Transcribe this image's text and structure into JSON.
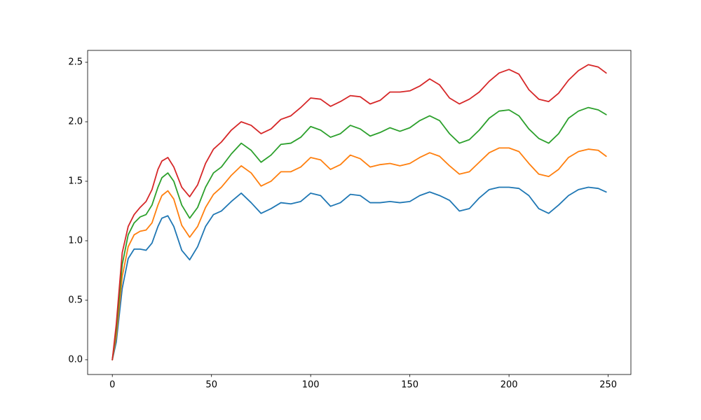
{
  "chart_data": {
    "type": "line",
    "x": [
      0,
      2,
      5,
      8,
      11,
      14,
      17,
      20,
      23,
      25,
      28,
      31,
      35,
      39,
      43,
      47,
      51,
      55,
      60,
      65,
      70,
      75,
      80,
      85,
      90,
      95,
      100,
      105,
      110,
      115,
      120,
      125,
      130,
      135,
      140,
      145,
      150,
      155,
      160,
      165,
      170,
      175,
      180,
      185,
      190,
      195,
      200,
      205,
      210,
      215,
      220,
      225,
      230,
      235,
      240,
      245,
      249
    ],
    "series": [
      {
        "color": "#1f77b4",
        "values": [
          0,
          0.15,
          0.6,
          0.85,
          0.93,
          0.93,
          0.92,
          0.98,
          1.12,
          1.19,
          1.21,
          1.12,
          0.92,
          0.84,
          0.95,
          1.12,
          1.22,
          1.25,
          1.33,
          1.4,
          1.32,
          1.23,
          1.27,
          1.32,
          1.31,
          1.33,
          1.4,
          1.38,
          1.29,
          1.32,
          1.39,
          1.38,
          1.32,
          1.32,
          1.33,
          1.32,
          1.33,
          1.38,
          1.41,
          1.38,
          1.34,
          1.25,
          1.27,
          1.36,
          1.43,
          1.45,
          1.45,
          1.44,
          1.38,
          1.27,
          1.23,
          1.3,
          1.38,
          1.43,
          1.45,
          1.44,
          1.41
        ]
      },
      {
        "color": "#ff7f0e",
        "values": [
          0,
          0.2,
          0.7,
          0.95,
          1.05,
          1.08,
          1.09,
          1.15,
          1.3,
          1.38,
          1.42,
          1.35,
          1.13,
          1.03,
          1.12,
          1.28,
          1.39,
          1.45,
          1.55,
          1.63,
          1.57,
          1.46,
          1.5,
          1.58,
          1.58,
          1.62,
          1.7,
          1.68,
          1.6,
          1.64,
          1.72,
          1.69,
          1.62,
          1.64,
          1.65,
          1.63,
          1.65,
          1.7,
          1.74,
          1.71,
          1.63,
          1.56,
          1.58,
          1.66,
          1.74,
          1.78,
          1.78,
          1.75,
          1.65,
          1.56,
          1.54,
          1.6,
          1.7,
          1.75,
          1.77,
          1.76,
          1.71
        ]
      },
      {
        "color": "#2ca02c",
        "values": [
          0,
          0.25,
          0.8,
          1.05,
          1.15,
          1.2,
          1.22,
          1.3,
          1.45,
          1.53,
          1.57,
          1.5,
          1.3,
          1.19,
          1.28,
          1.45,
          1.57,
          1.62,
          1.73,
          1.82,
          1.76,
          1.66,
          1.72,
          1.81,
          1.82,
          1.87,
          1.96,
          1.93,
          1.87,
          1.9,
          1.97,
          1.94,
          1.88,
          1.91,
          1.95,
          1.92,
          1.95,
          2.01,
          2.05,
          2.01,
          1.9,
          1.82,
          1.85,
          1.93,
          2.03,
          2.09,
          2.1,
          2.05,
          1.94,
          1.86,
          1.82,
          1.9,
          2.03,
          2.09,
          2.12,
          2.1,
          2.06
        ]
      },
      {
        "color": "#d62728",
        "values": [
          0,
          0.3,
          0.9,
          1.12,
          1.22,
          1.28,
          1.33,
          1.43,
          1.6,
          1.67,
          1.7,
          1.62,
          1.45,
          1.37,
          1.47,
          1.65,
          1.77,
          1.83,
          1.93,
          2.0,
          1.97,
          1.9,
          1.94,
          2.02,
          2.05,
          2.12,
          2.2,
          2.19,
          2.13,
          2.17,
          2.22,
          2.21,
          2.15,
          2.18,
          2.25,
          2.25,
          2.26,
          2.3,
          2.36,
          2.31,
          2.2,
          2.15,
          2.19,
          2.25,
          2.34,
          2.41,
          2.44,
          2.4,
          2.27,
          2.19,
          2.17,
          2.24,
          2.35,
          2.43,
          2.48,
          2.46,
          2.41
        ]
      }
    ],
    "xlim": [
      -12.45,
      261.45
    ],
    "xticks": [
      0,
      50,
      100,
      150,
      200,
      250
    ],
    "ylim": [
      -0.124,
      2.6
    ],
    "yticks": [
      {
        "value": 0,
        "label": "0.0"
      },
      0.5,
      {
        "value": 1,
        "label": "1.0"
      },
      1.5,
      {
        "value": 2,
        "label": "2.0"
      },
      2.5
    ],
    "grid": false
  }
}
